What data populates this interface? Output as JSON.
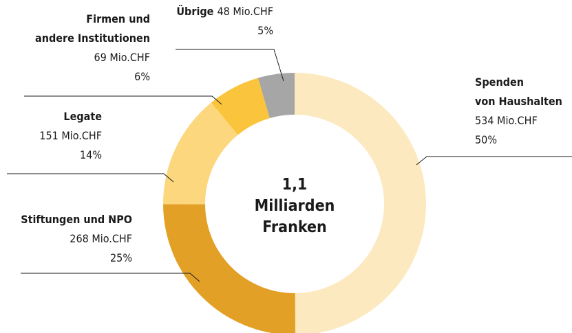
{
  "chart_data": {
    "type": "donut",
    "categories": [
      "Spenden\nvon Haushalten",
      "Stiftungen und NPO",
      "Legate",
      "Firmen und\nandere Institutionen",
      "Übrige"
    ],
    "values": [
      534,
      268,
      151,
      69,
      48
    ],
    "value_labels": [
      "534 Mio.CHF",
      "268 Mio.CHF",
      "151 Mio.CHF",
      "69 Mio.CHF",
      "48 Mio.CHF"
    ],
    "percent_labels": [
      "50%",
      "25%",
      "14%",
      "6%",
      "5%"
    ],
    "colors": [
      "#fde9c0",
      "#e3a026",
      "#fcd77e",
      "#fbc43d",
      "#a6a6a6"
    ],
    "center_text": [
      "1,1",
      "Milliarden",
      "Franken"
    ]
  }
}
